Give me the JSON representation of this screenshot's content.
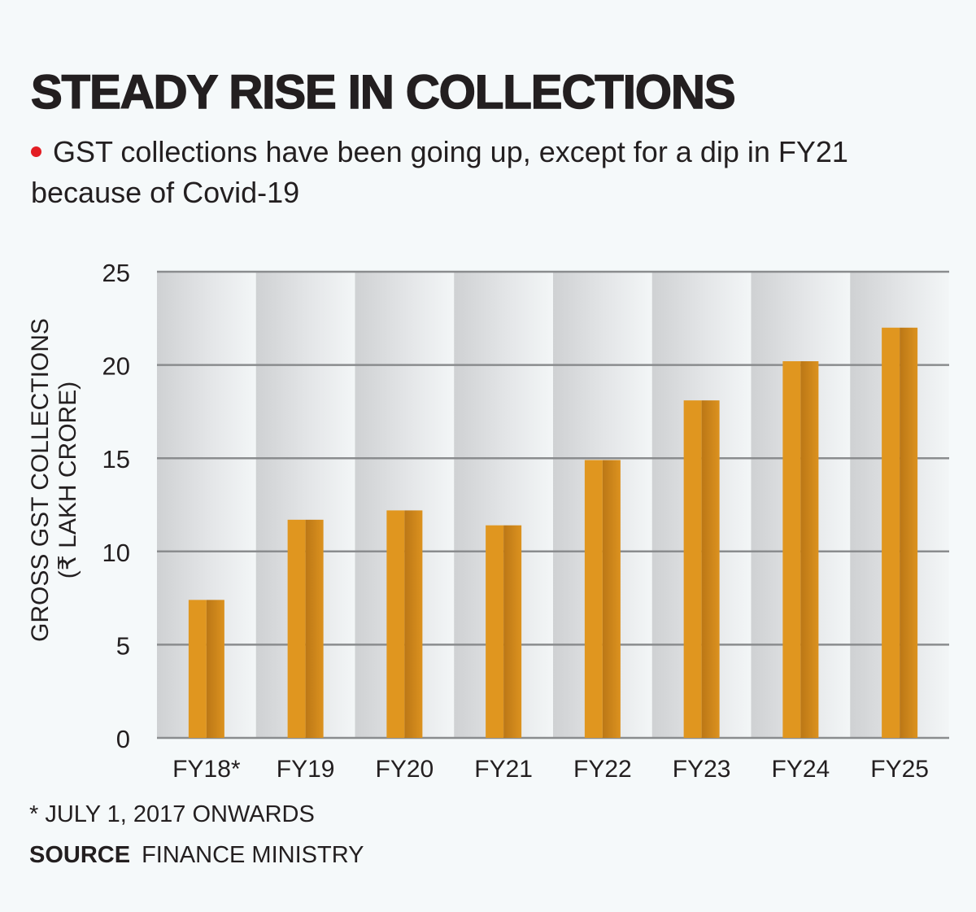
{
  "header": {
    "title": "STEADY RISE IN COLLECTIONS",
    "subtitle": "GST collections have been going up, except for a  dip in FY21 because of Covid-19",
    "bullet_color": "#e31e24"
  },
  "footer": {
    "footnote": "* JULY 1, 2017 ONWARDS",
    "source_label": "SOURCE",
    "source_value": "FINANCE MINISTRY"
  },
  "colors": {
    "bar_light": "#e0961f",
    "bar_dark": "#c37d18",
    "gridline": "#8a8c8e",
    "text": "#231f20"
  },
  "chart_data": {
    "type": "bar",
    "title": "STEADY RISE IN COLLECTIONS",
    "xlabel": "",
    "ylabel": "GROSS GST COLLECTIONS (₹ LAKH CRORE)",
    "ylabel_lines": [
      "GROSS GST COLLECTIONS",
      "(₹ LAKH CRORE)"
    ],
    "categories": [
      "FY18*",
      "FY19",
      "FY20",
      "FY21",
      "FY22",
      "FY23",
      "FY24",
      "FY25"
    ],
    "values": [
      7.4,
      11.7,
      12.2,
      11.4,
      14.9,
      18.1,
      20.2,
      22.0
    ],
    "ylim": [
      0,
      25
    ],
    "yticks": [
      0,
      5,
      10,
      15,
      20,
      25
    ],
    "grid": true,
    "legend": "none"
  }
}
